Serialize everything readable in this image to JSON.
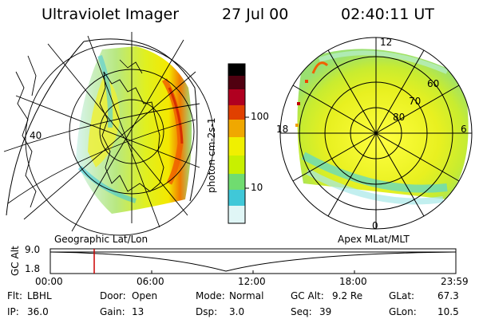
{
  "header": {
    "title": "Ultraviolet Imager",
    "date": "27 Jul 00",
    "time": "02:40:11 UT"
  },
  "colorbar": {
    "label": "photon cm-2s-1",
    "ticks": [
      "100",
      "10"
    ],
    "scale": "log",
    "colors": [
      "#ffffff",
      "#c8f0f0",
      "#30c8d8",
      "#70dc70",
      "#c8f000",
      "#f0f000",
      "#f0b000",
      "#f06000",
      "#c00000",
      "#600000",
      "#000000"
    ]
  },
  "left_panel": {
    "label": "Geographic Lat/Lon",
    "lat_ticks": [
      "40"
    ]
  },
  "right_panel": {
    "label": "Apex MLat/MLT",
    "mlt_ticks": [
      "12",
      "18",
      "6",
      "0"
    ],
    "mlat_ticks": [
      "80",
      "70",
      "60"
    ]
  },
  "altitude_plot": {
    "ylabel": "GC Alt",
    "y_ticks": [
      "9.0",
      "1.8"
    ],
    "x_ticks": [
      "00:00",
      "06:00",
      "12:00",
      "18:00",
      "23:59"
    ],
    "marker_color": "#cc0000"
  },
  "info": {
    "row1": [
      {
        "label": "Flt:",
        "value": "LBHL"
      },
      {
        "label": "Door:",
        "value": "Open"
      },
      {
        "label": "Mode:",
        "value": "Normal"
      },
      {
        "label": "GC Alt:",
        "value": "9.2 Re"
      },
      {
        "label": "GLat:",
        "value": "67.3"
      }
    ],
    "row2": [
      {
        "label": "IP:",
        "value": "36.0"
      },
      {
        "label": "Gain:",
        "value": "13"
      },
      {
        "label": "Dsp:",
        "value": "3.0"
      },
      {
        "label": "Seq:",
        "value": "39"
      },
      {
        "label": "GLon:",
        "value": "10.5"
      }
    ]
  }
}
